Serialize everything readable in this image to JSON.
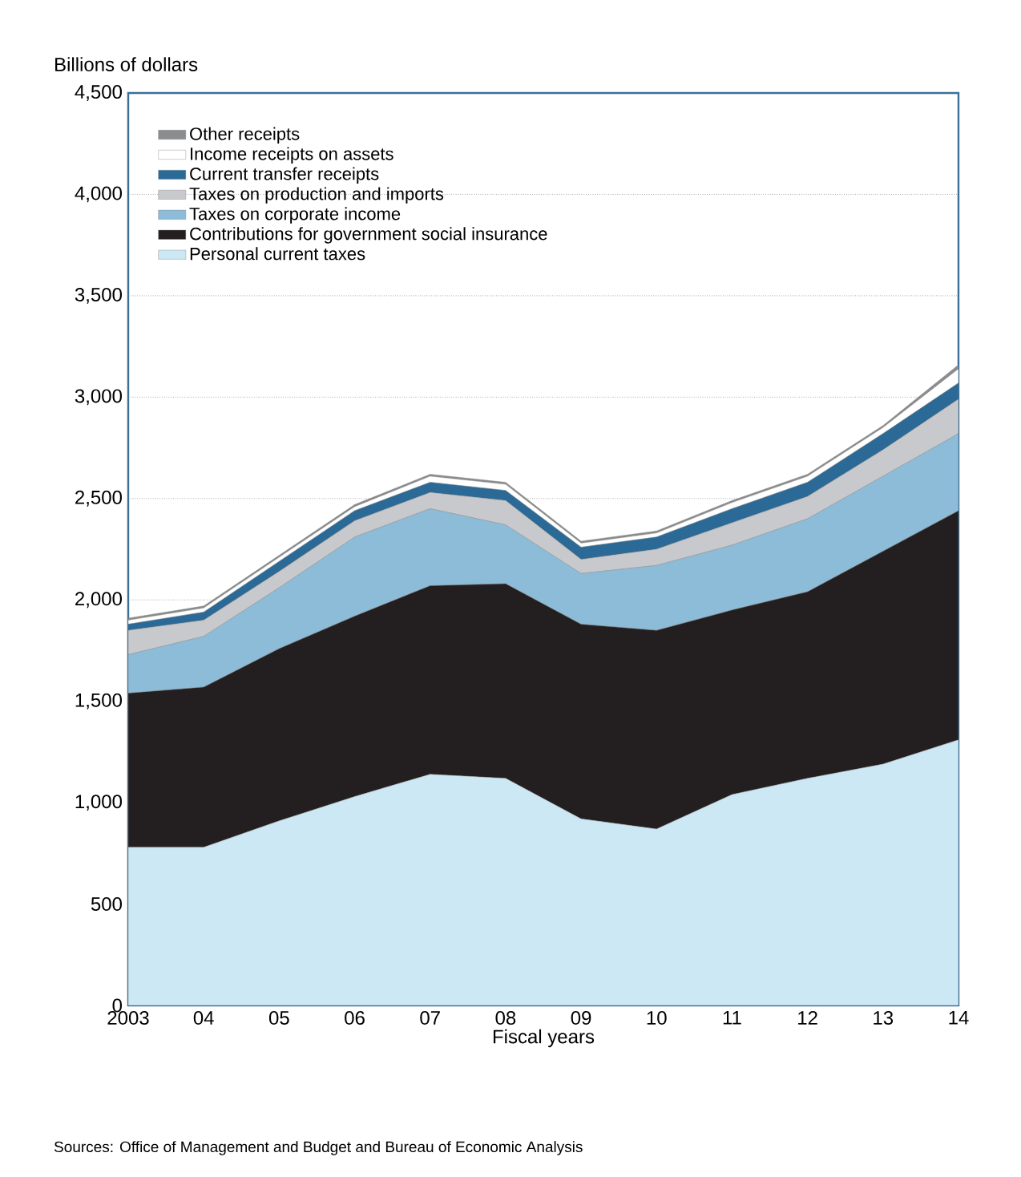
{
  "chart_data": {
    "type": "area",
    "stacked": true,
    "ylabel": "Billions of dollars",
    "xlabel": "Fiscal years",
    "categories": [
      "2003",
      "04",
      "05",
      "06",
      "07",
      "08",
      "09",
      "10",
      "11",
      "12",
      "13",
      "14"
    ],
    "ylim": [
      0,
      4500
    ],
    "yticks": [
      0,
      {
        "value": 500,
        "label": "500"
      },
      {
        "value": 1000,
        "label": "1,000"
      },
      {
        "value": 1500,
        "label": "1,500"
      },
      {
        "value": 2000,
        "label": "2,000"
      },
      {
        "value": 2500,
        "label": "2,500"
      },
      {
        "value": 3000,
        "label": "3,000"
      },
      {
        "value": 3500,
        "label": "3,500"
      },
      {
        "value": 4000,
        "label": "4,000"
      },
      {
        "value": 4500,
        "label": "4,500"
      }
    ],
    "grid": "y",
    "legend": "top left",
    "series": [
      {
        "name": "Personal current taxes",
        "color": "#cde8f5",
        "values": [
          780,
          780,
          910,
          1030,
          1140,
          1120,
          920,
          870,
          1040,
          1120,
          1190,
          1310
        ]
      },
      {
        "name": "Contributions for government social insurance",
        "color": "#231f20",
        "values": [
          760,
          790,
          850,
          890,
          930,
          960,
          960,
          980,
          910,
          920,
          1050,
          1130
        ]
      },
      {
        "name": "Taxes on corporate income",
        "color": "#8dbcd8",
        "values": [
          190,
          250,
          300,
          390,
          380,
          290,
          250,
          320,
          320,
          360,
          370,
          380
        ]
      },
      {
        "name": "Taxes on production and imports",
        "color": "#c8c9cc",
        "values": [
          120,
          80,
          80,
          80,
          80,
          120,
          70,
          80,
          110,
          110,
          130,
          170
        ]
      },
      {
        "name": "Current transfer receipts",
        "color": "#2b6a96",
        "values": [
          30,
          40,
          50,
          50,
          50,
          50,
          60,
          60,
          70,
          70,
          80,
          80
        ]
      },
      {
        "name": "Income receipts on assets",
        "color": "#ffffff",
        "values": [
          20,
          20,
          20,
          20,
          30,
          30,
          20,
          20,
          30,
          30,
          30,
          70
        ]
      },
      {
        "name": "Other receipts",
        "color": "#8a8c8e",
        "values": [
          10,
          10,
          10,
          10,
          10,
          10,
          10,
          10,
          10,
          10,
          10,
          20
        ]
      }
    ],
    "annotations": [
      "Sources: Office of Management and Budget and Bureau of Economic Analysis"
    ]
  }
}
